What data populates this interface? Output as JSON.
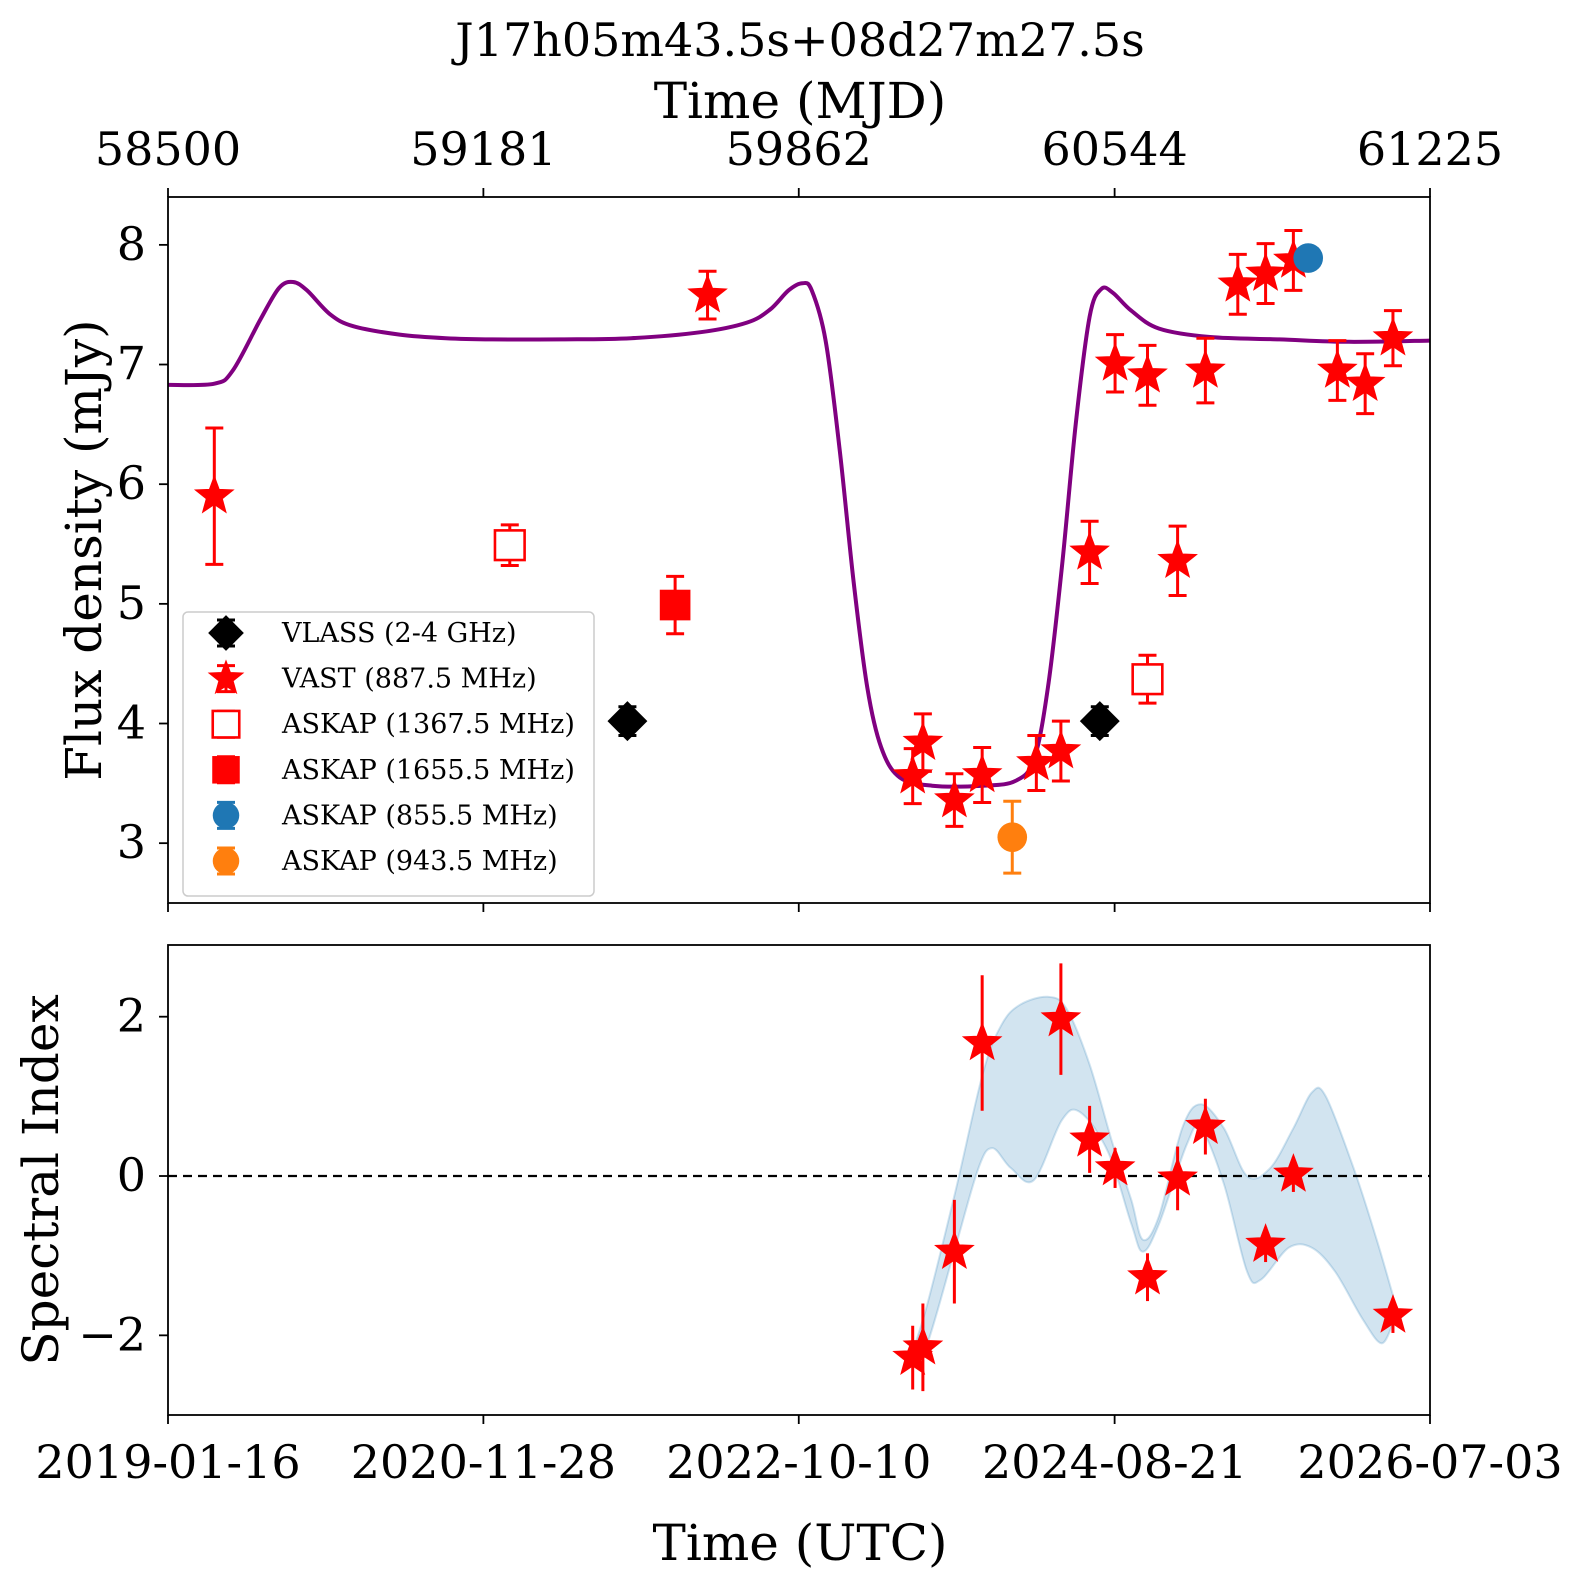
{
  "chart_data": [
    {
      "type": "scatter",
      "title": "J17h05m43.5s+08d27m27.5s",
      "top_axis": {
        "label": "Time (MJD)",
        "ticks": [
          "58500",
          "59181",
          "59862",
          "60544",
          "61225"
        ],
        "tick_values": [
          58500,
          59181,
          59862,
          60544,
          61225
        ]
      },
      "xlim": [
        58500,
        61225
      ],
      "ylabel": "Flux density (mJy)",
      "ylim": [
        2.5,
        8.4
      ],
      "yticks": [
        3,
        4,
        5,
        6,
        7,
        8
      ],
      "grid": false,
      "legend_position": "lower-left",
      "model_curve": {
        "color": "#800080",
        "points": [
          [
            58500,
            6.83
          ],
          [
            58600,
            6.84
          ],
          [
            58640,
            6.95
          ],
          [
            58700,
            7.38
          ],
          [
            58740,
            7.64
          ],
          [
            58770,
            7.69
          ],
          [
            58800,
            7.62
          ],
          [
            58850,
            7.42
          ],
          [
            58900,
            7.32
          ],
          [
            59000,
            7.25
          ],
          [
            59100,
            7.22
          ],
          [
            59200,
            7.21
          ],
          [
            59350,
            7.21
          ],
          [
            59500,
            7.22
          ],
          [
            59650,
            7.27
          ],
          [
            59750,
            7.35
          ],
          [
            59800,
            7.46
          ],
          [
            59840,
            7.62
          ],
          [
            59870,
            7.68
          ],
          [
            59890,
            7.62
          ],
          [
            59920,
            7.2
          ],
          [
            59950,
            6.3
          ],
          [
            59980,
            5.2
          ],
          [
            60010,
            4.3
          ],
          [
            60040,
            3.8
          ],
          [
            60080,
            3.55
          ],
          [
            60150,
            3.48
          ],
          [
            60260,
            3.48
          ],
          [
            60330,
            3.52
          ],
          [
            60370,
            3.7
          ],
          [
            60400,
            4.3
          ],
          [
            60430,
            5.3
          ],
          [
            60460,
            6.5
          ],
          [
            60490,
            7.4
          ],
          [
            60515,
            7.63
          ],
          [
            60540,
            7.6
          ],
          [
            60580,
            7.45
          ],
          [
            60640,
            7.3
          ],
          [
            60750,
            7.23
          ],
          [
            60900,
            7.21
          ],
          [
            61050,
            7.19
          ],
          [
            61225,
            7.2
          ]
        ]
      },
      "series": [
        {
          "name": "VLASS (2-4 GHz)",
          "marker": "diamond",
          "filled": true,
          "color": "#000000",
          "points": [
            {
              "x": 59492,
              "y": 4.02,
              "err": 0.12
            },
            {
              "x": 60512,
              "y": 4.02,
              "err": 0.12
            }
          ]
        },
        {
          "name": "VAST (887.5 MHz)",
          "marker": "star",
          "filled": true,
          "color": "#ff0000",
          "points": [
            {
              "x": 58600,
              "y": 5.9,
              "err": 0.57
            },
            {
              "x": 59665,
              "y": 7.58,
              "err": 0.2
            },
            {
              "x": 60108,
              "y": 3.56,
              "err": 0.23
            },
            {
              "x": 60130,
              "y": 3.84,
              "err": 0.24
            },
            {
              "x": 60198,
              "y": 3.36,
              "err": 0.22
            },
            {
              "x": 60258,
              "y": 3.57,
              "err": 0.23
            },
            {
              "x": 60375,
              "y": 3.67,
              "err": 0.23
            },
            {
              "x": 60428,
              "y": 3.77,
              "err": 0.25
            },
            {
              "x": 60490,
              "y": 5.43,
              "err": 0.26
            },
            {
              "x": 60545,
              "y": 7.01,
              "err": 0.24
            },
            {
              "x": 60615,
              "y": 6.91,
              "err": 0.25
            },
            {
              "x": 60680,
              "y": 5.36,
              "err": 0.29
            },
            {
              "x": 60740,
              "y": 6.95,
              "err": 0.27
            },
            {
              "x": 60810,
              "y": 7.67,
              "err": 0.25
            },
            {
              "x": 60870,
              "y": 7.76,
              "err": 0.25
            },
            {
              "x": 60930,
              "y": 7.87,
              "err": 0.25
            },
            {
              "x": 61025,
              "y": 6.95,
              "err": 0.25
            },
            {
              "x": 61085,
              "y": 6.84,
              "err": 0.25
            },
            {
              "x": 61145,
              "y": 7.22,
              "err": 0.23
            }
          ]
        },
        {
          "name": "ASKAP (1367.5 MHz)",
          "marker": "square",
          "filled": false,
          "color": "#ff0000",
          "points": [
            {
              "x": 59238,
              "y": 5.49,
              "err": 0.17
            },
            {
              "x": 60615,
              "y": 4.37,
              "err": 0.2
            }
          ]
        },
        {
          "name": "ASKAP (1655.5 MHz)",
          "marker": "square",
          "filled": true,
          "color": "#ff0000",
          "points": [
            {
              "x": 59595,
              "y": 4.99,
              "err": 0.24
            }
          ]
        },
        {
          "name": "ASKAP (855.5 MHz)",
          "marker": "circle",
          "filled": true,
          "color": "#1f77b4",
          "points": [
            {
              "x": 60962,
              "y": 7.89,
              "err": 0.07
            }
          ]
        },
        {
          "name": "ASKAP (943.5 MHz)",
          "marker": "circle",
          "filled": true,
          "color": "#ff7f0e",
          "points": [
            {
              "x": 60323,
              "y": 3.05,
              "err": 0.3
            }
          ]
        }
      ]
    },
    {
      "type": "scatter",
      "xlabel": "Time (UTC)",
      "ylabel": "Spectral Index",
      "xlim": [
        58500,
        61225
      ],
      "ylim": [
        -3.0,
        2.9
      ],
      "yticks": [
        -2,
        0,
        2
      ],
      "ytick_labels": [
        "−2",
        "0",
        "2"
      ],
      "xticks": [
        "2019-01-16",
        "2020-11-28",
        "2022-10-10",
        "2024-08-21",
        "2026-07-03"
      ],
      "xtick_values": [
        58500,
        59181,
        59862,
        60544,
        61225
      ],
      "reference_line": {
        "y": 0,
        "style": "dashed",
        "color": "#000000"
      },
      "band": {
        "color": "#1f77b4",
        "upper": [
          [
            60108,
            -2.2
          ],
          [
            60140,
            -1.6
          ],
          [
            60200,
            -0.2
          ],
          [
            60260,
            1.3
          ],
          [
            60300,
            1.9
          ],
          [
            60340,
            2.15
          ],
          [
            60400,
            2.25
          ],
          [
            60440,
            2.1
          ],
          [
            60490,
            1.4
          ],
          [
            60540,
            0.4
          ],
          [
            60580,
            -0.3
          ],
          [
            60605,
            -0.8
          ],
          [
            60640,
            -0.5
          ],
          [
            60690,
            0.6
          ],
          [
            60730,
            0.9
          ],
          [
            60780,
            0.6
          ],
          [
            60830,
            0.0
          ],
          [
            60880,
            0.1
          ],
          [
            60930,
            0.6
          ],
          [
            60970,
            1.05
          ],
          [
            61000,
            1.0
          ],
          [
            61060,
            0.1
          ],
          [
            61110,
            -0.8
          ],
          [
            61145,
            -1.5
          ]
        ],
        "lower": [
          [
            60108,
            -2.4
          ],
          [
            60140,
            -2.1
          ],
          [
            60200,
            -0.9
          ],
          [
            60250,
            0.1
          ],
          [
            60280,
            0.35
          ],
          [
            60320,
            0.1
          ],
          [
            60370,
            -0.05
          ],
          [
            60430,
            0.7
          ],
          [
            60470,
            0.8
          ],
          [
            60530,
            0.3
          ],
          [
            60580,
            -0.6
          ],
          [
            60605,
            -0.95
          ],
          [
            60640,
            -0.6
          ],
          [
            60700,
            0.4
          ],
          [
            60730,
            0.6
          ],
          [
            60780,
            -0.1
          ],
          [
            60830,
            -1.2
          ],
          [
            60860,
            -1.3
          ],
          [
            60920,
            -0.9
          ],
          [
            60970,
            -0.9
          ],
          [
            61020,
            -1.2
          ],
          [
            61080,
            -1.8
          ],
          [
            61120,
            -2.1
          ],
          [
            61145,
            -1.85
          ]
        ]
      },
      "series": [
        {
          "name": "",
          "marker": "star",
          "filled": true,
          "color": "#ff0000",
          "points": [
            {
              "x": 60108,
              "y": -2.28,
              "err": 0.4
            },
            {
              "x": 60130,
              "y": -2.15,
              "err": 0.55
            },
            {
              "x": 60198,
              "y": -0.95,
              "err": 0.65
            },
            {
              "x": 60258,
              "y": 1.67,
              "err": 0.85
            },
            {
              "x": 60428,
              "y": 1.97,
              "err": 0.7
            },
            {
              "x": 60490,
              "y": 0.46,
              "err": 0.42
            },
            {
              "x": 60545,
              "y": 0.1,
              "err": 0.25
            },
            {
              "x": 60615,
              "y": -1.27,
              "err": 0.3
            },
            {
              "x": 60680,
              "y": -0.03,
              "err": 0.4
            },
            {
              "x": 60740,
              "y": 0.62,
              "err": 0.35
            },
            {
              "x": 60870,
              "y": -0.86,
              "err": 0.22
            },
            {
              "x": 60930,
              "y": 0.02,
              "err": 0.22
            },
            {
              "x": 61145,
              "y": -1.75,
              "err": 0.22
            }
          ]
        }
      ]
    }
  ]
}
